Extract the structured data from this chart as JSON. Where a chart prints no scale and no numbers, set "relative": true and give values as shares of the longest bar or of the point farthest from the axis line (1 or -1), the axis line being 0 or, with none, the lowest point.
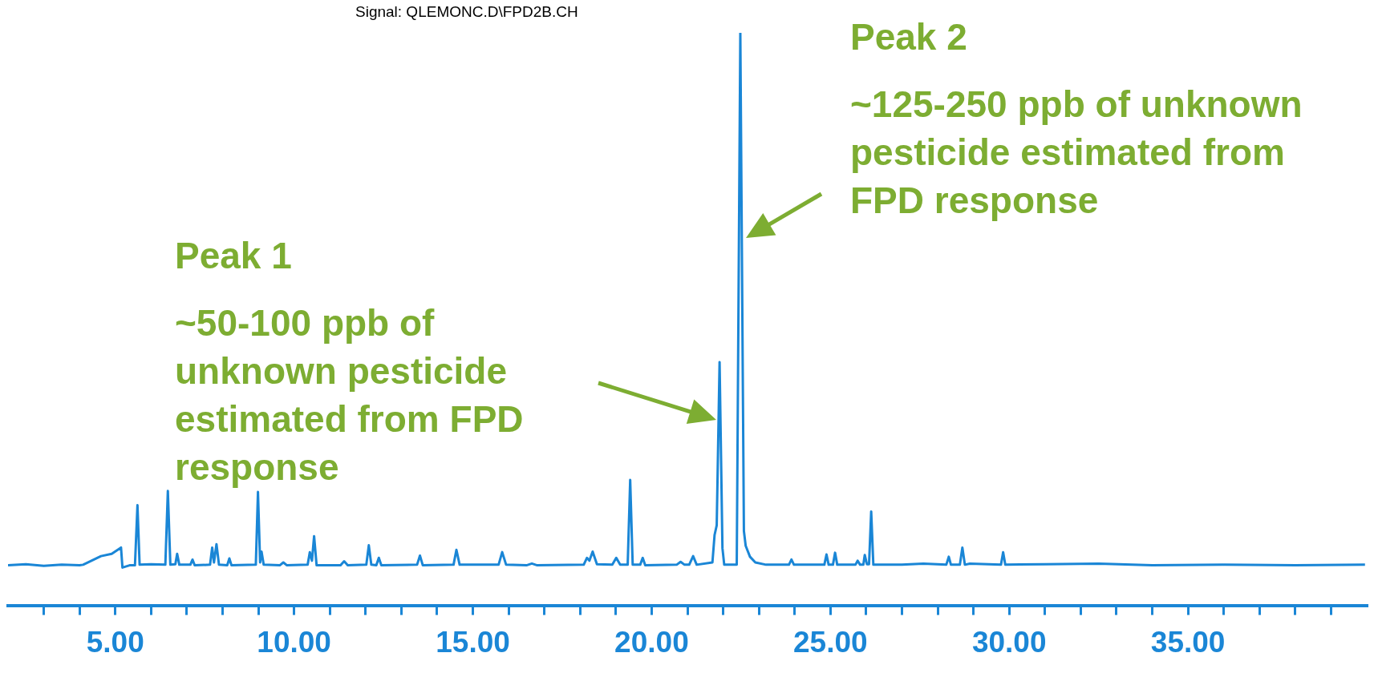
{
  "chart_data": {
    "type": "line",
    "relative": true,
    "color": "#1a86d6",
    "marker": "none",
    "line_style": "solid",
    "x": [
      2.0,
      2.5,
      3.0,
      3.5,
      4.0,
      4.1,
      4.6,
      4.9,
      5.16,
      5.2,
      5.4,
      5.55,
      5.62,
      5.68,
      6.0,
      6.4,
      6.47,
      6.54,
      6.68,
      6.73,
      6.79,
      7.1,
      7.16,
      7.22,
      7.65,
      7.71,
      7.76,
      7.83,
      7.9,
      8.13,
      8.19,
      8.25,
      8.93,
      8.99,
      9.05,
      9.09,
      9.15,
      9.6,
      9.7,
      9.8,
      10.38,
      10.44,
      10.5,
      10.56,
      10.63,
      11.3,
      11.4,
      11.5,
      12.02,
      12.09,
      12.16,
      12.3,
      12.37,
      12.44,
      13.44,
      13.52,
      13.6,
      14.46,
      14.54,
      14.63,
      15.72,
      15.82,
      15.93,
      16.5,
      16.65,
      16.8,
      18.1,
      18.19,
      18.26,
      18.35,
      18.47,
      18.9,
      19.01,
      19.12,
      19.33,
      19.4,
      19.47,
      19.68,
      19.75,
      19.82,
      20.7,
      20.81,
      20.92,
      21.05,
      21.16,
      21.26,
      21.7,
      21.76,
      21.82,
      21.9,
      21.98,
      22.03,
      22.38,
      22.48,
      22.58,
      22.63,
      22.75,
      22.9,
      23.2,
      23.84,
      23.91,
      23.98,
      24.83,
      24.89,
      24.95,
      25.07,
      25.13,
      25.19,
      25.7,
      25.76,
      25.83,
      25.92,
      25.96,
      26.02,
      26.08,
      26.14,
      26.2,
      27.0,
      27.6,
      28.24,
      28.31,
      28.37,
      28.62,
      28.69,
      28.76,
      28.9,
      29.77,
      29.83,
      29.89,
      31,
      32.5,
      34,
      36,
      38,
      39.95
    ],
    "values": [
      0.07,
      0.072,
      0.069,
      0.071,
      0.07,
      0.071,
      0.086,
      0.09,
      0.101,
      0.066,
      0.07,
      0.07,
      0.175,
      0.071,
      0.072,
      0.071,
      0.2,
      0.071,
      0.072,
      0.09,
      0.071,
      0.071,
      0.08,
      0.07,
      0.071,
      0.101,
      0.075,
      0.107,
      0.071,
      0.07,
      0.082,
      0.07,
      0.071,
      0.198,
      0.075,
      0.094,
      0.071,
      0.07,
      0.075,
      0.07,
      0.071,
      0.093,
      0.078,
      0.121,
      0.07,
      0.07,
      0.077,
      0.07,
      0.071,
      0.105,
      0.071,
      0.07,
      0.083,
      0.07,
      0.071,
      0.087,
      0.07,
      0.071,
      0.097,
      0.071,
      0.071,
      0.093,
      0.071,
      0.07,
      0.073,
      0.07,
      0.071,
      0.083,
      0.078,
      0.094,
      0.072,
      0.071,
      0.083,
      0.071,
      0.071,
      0.219,
      0.071,
      0.071,
      0.083,
      0.07,
      0.071,
      0.076,
      0.071,
      0.071,
      0.086,
      0.071,
      0.075,
      0.123,
      0.14,
      0.425,
      0.1,
      0.071,
      0.071,
      1.0,
      0.13,
      0.104,
      0.085,
      0.075,
      0.071,
      0.071,
      0.08,
      0.071,
      0.071,
      0.089,
      0.071,
      0.071,
      0.092,
      0.071,
      0.071,
      0.078,
      0.071,
      0.071,
      0.088,
      0.072,
      0.072,
      0.164,
      0.071,
      0.071,
      0.073,
      0.071,
      0.085,
      0.071,
      0.071,
      0.101,
      0.071,
      0.073,
      0.071,
      0.093,
      0.071,
      0.072,
      0.073,
      0.07,
      0.071,
      0.07,
      0.071
    ],
    "xlim": [
      2,
      40
    ],
    "xticks": [
      {
        "value": 3,
        "label": null
      },
      {
        "value": 4,
        "label": null
      },
      {
        "value": 5,
        "label": "5.00"
      },
      {
        "value": 6,
        "label": null
      },
      {
        "value": 7,
        "label": null
      },
      {
        "value": 8,
        "label": null
      },
      {
        "value": 9,
        "label": null
      },
      {
        "value": 10,
        "label": "10.00"
      },
      {
        "value": 11,
        "label": null
      },
      {
        "value": 12,
        "label": null
      },
      {
        "value": 13,
        "label": null
      },
      {
        "value": 14,
        "label": null
      },
      {
        "value": 15,
        "label": "15.00"
      },
      {
        "value": 16,
        "label": null
      },
      {
        "value": 17,
        "label": null
      },
      {
        "value": 18,
        "label": null
      },
      {
        "value": 19,
        "label": null
      },
      {
        "value": 20,
        "label": "20.00"
      },
      {
        "value": 21,
        "label": null
      },
      {
        "value": 22,
        "label": null
      },
      {
        "value": 23,
        "label": null
      },
      {
        "value": 24,
        "label": null
      },
      {
        "value": 25,
        "label": "25.00"
      },
      {
        "value": 26,
        "label": null
      },
      {
        "value": 27,
        "label": null
      },
      {
        "value": 28,
        "label": null
      },
      {
        "value": 29,
        "label": null
      },
      {
        "value": 30,
        "label": "30.00"
      },
      {
        "value": 31,
        "label": null
      },
      {
        "value": 32,
        "label": null
      },
      {
        "value": 33,
        "label": null
      },
      {
        "value": 34,
        "label": null
      },
      {
        "value": 35,
        "label": "35.00"
      },
      {
        "value": 36,
        "label": null
      },
      {
        "value": 37,
        "label": null
      },
      {
        "value": 38,
        "label": null
      },
      {
        "value": 39,
        "label": null
      }
    ],
    "legend": false,
    "annotations": [
      "Signal: QLEMONC.D\\FPD2B.CH",
      "Peak 1",
      "~50-100 ppb of unknown pesticide estimated from FPD response",
      "Peak 2",
      "~125-250 ppb of unknown pesticide estimated from FPD response"
    ]
  }
}
